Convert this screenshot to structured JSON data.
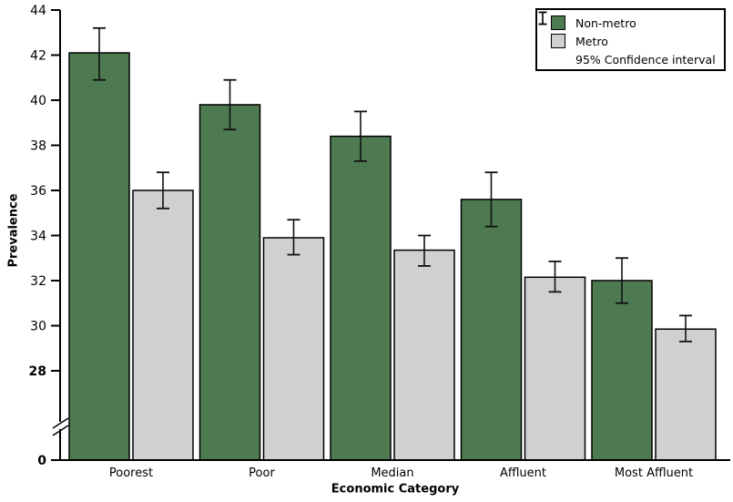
{
  "chart_data": {
    "type": "bar",
    "xlabel": "Economic Category",
    "ylabel": "Prevalence",
    "categories": [
      "Poorest",
      "Poor",
      "Median",
      "Affluent",
      "Most Affluent"
    ],
    "series": [
      {
        "name": "Non-metro",
        "color": "#4e7a52",
        "values": [
          42.1,
          39.8,
          38.4,
          35.6,
          32.0
        ],
        "ci_low": [
          40.9,
          38.7,
          37.3,
          34.4,
          31.0
        ],
        "ci_high": [
          43.2,
          40.9,
          39.5,
          36.8,
          33.0
        ]
      },
      {
        "name": "Metro",
        "color": "#d0d0d0",
        "values": [
          36.0,
          33.9,
          33.35,
          32.15,
          29.85
        ],
        "ci_low": [
          35.2,
          33.15,
          32.65,
          31.5,
          29.3
        ],
        "ci_high": [
          36.8,
          34.7,
          34.0,
          32.85,
          30.45
        ]
      }
    ],
    "legend": {
      "position": "top-right",
      "items": [
        {
          "label": "Non-metro",
          "swatch": "non-metro"
        },
        {
          "label": "Metro",
          "swatch": "metro"
        },
        {
          "label": "95% Confidence interval",
          "swatch": "error-bar"
        }
      ]
    },
    "yticks": [
      44,
      42,
      40,
      38,
      36,
      34,
      32,
      30,
      28,
      0
    ],
    "bold_ticks": [
      28,
      0
    ],
    "axis_break": true,
    "grid": false,
    "ylim": [
      0,
      44
    ],
    "shown_value_range": [
      28,
      44
    ]
  },
  "colors": {
    "non_metro": "#4e7a52",
    "metro": "#d0d0d0",
    "axis": "#000000",
    "text": "#000000",
    "background": "#ffffff"
  }
}
